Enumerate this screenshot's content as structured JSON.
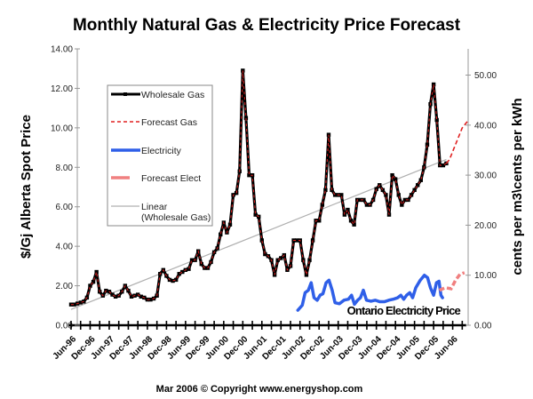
{
  "chart_data": {
    "type": "line",
    "title": "Monthly Natural Gas & Electricity Price Forecast",
    "ylabel_left": "$/Gj Alberta Spot Price",
    "ylabel_right": "cents per m3\\cents per kWh",
    "ylim_left": [
      0,
      14
    ],
    "ylim_right": [
      0,
      55
    ],
    "yticks_left": [
      "0.00",
      "2.00",
      "4.00",
      "6.00",
      "8.00",
      "10.00",
      "12.00",
      "14.00"
    ],
    "yticks_right": [
      "0.00",
      "10.00",
      "20.00",
      "30.00",
      "40.00",
      "50.00"
    ],
    "x_start_month": "Jun-96",
    "x_unit": "months since Jun-96",
    "xticks": [
      "Jun-96",
      "Dec-96",
      "Jun-97",
      "Dec-97",
      "Jun-98",
      "Dec-98",
      "Jun-99",
      "Dec-99",
      "Jun-00",
      "Dec-00",
      "Jun-01",
      "Dec-01",
      "Jun-02",
      "Dec-02",
      "Jun-03",
      "Dec-03",
      "Jun-04",
      "Dec-04",
      "Jun-05",
      "Dec-05",
      "Jun-06"
    ],
    "grid": false,
    "legend_position": "top-left",
    "legend": [
      "Wholesale Gas",
      "Forecast Gas",
      "Electricity",
      "Forecast Elect",
      "Linear\n(Wholesale Gas)"
    ],
    "legend_linear_line1": "Linear",
    "legend_linear_line2": "(Wholesale Gas)",
    "annotation": "Ontario Electricity Price",
    "series": [
      {
        "name": "Wholesale Gas",
        "axis": "left",
        "color": "#000000",
        "values": [
          1.05,
          1.05,
          1.1,
          1.15,
          1.2,
          1.4,
          2.0,
          2.2,
          2.7,
          1.7,
          1.5,
          1.75,
          1.7,
          1.55,
          1.45,
          1.5,
          1.7,
          2.0,
          1.75,
          1.45,
          1.5,
          1.55,
          1.45,
          1.4,
          1.3,
          1.3,
          1.35,
          1.5,
          2.6,
          2.8,
          2.5,
          2.3,
          2.25,
          2.3,
          2.6,
          2.7,
          2.8,
          2.85,
          3.3,
          3.3,
          3.75,
          3.1,
          2.9,
          2.9,
          3.2,
          3.7,
          3.9,
          4.6,
          5.2,
          4.7,
          5.1,
          6.6,
          6.7,
          7.8,
          12.9,
          10.5,
          7.6,
          7.6,
          5.6,
          5.5,
          4.3,
          3.6,
          3.5,
          3.3,
          2.55,
          3.3,
          3.4,
          3.55,
          2.8,
          3.0,
          4.3,
          4.3,
          4.3,
          3.3,
          2.55,
          3.3,
          4.3,
          5.3,
          5.3,
          6.1,
          6.85,
          9.65,
          6.85,
          6.6,
          6.6,
          6.6,
          5.6,
          5.85,
          5.3,
          5.1,
          6.35,
          6.35,
          6.35,
          6.1,
          6.1,
          6.35,
          6.9,
          7.1,
          6.85,
          6.6,
          5.6,
          7.6,
          7.4,
          6.6,
          6.1,
          6.35,
          6.35,
          6.6,
          6.85,
          7.1,
          7.35,
          8.0,
          9.15,
          11.2,
          12.2,
          10.4,
          8.1,
          8.1,
          8.2
        ]
      },
      {
        "name": "Forecast Gas",
        "axis": "left",
        "color": "#e02020",
        "points": [
          [
            118,
            8.2
          ],
          [
            119,
            8.4
          ],
          [
            120,
            8.8
          ],
          [
            121,
            9.2
          ],
          [
            122,
            9.6
          ],
          [
            123,
            10.0
          ],
          [
            124,
            10.2
          ],
          [
            125,
            10.4
          ]
        ]
      },
      {
        "name": "Electricity",
        "axis": "right",
        "color": "#2f5fe8",
        "points": [
          [
            71.3,
            3
          ],
          [
            72.7,
            4
          ],
          [
            73.6,
            6.5
          ],
          [
            74.6,
            7
          ],
          [
            75.5,
            8.5
          ],
          [
            76.4,
            5.5
          ],
          [
            77.4,
            5
          ],
          [
            78.3,
            6
          ],
          [
            79.2,
            6.3
          ],
          [
            80.2,
            8.5
          ],
          [
            81.1,
            9
          ],
          [
            82.1,
            7
          ],
          [
            83.0,
            4.5
          ],
          [
            84.4,
            4.3
          ],
          [
            85.8,
            5
          ],
          [
            87.2,
            5.2
          ],
          [
            88.2,
            6
          ],
          [
            89.1,
            4.2
          ],
          [
            90.1,
            5
          ],
          [
            91.0,
            5.5
          ],
          [
            91.9,
            7
          ],
          [
            92.9,
            5
          ],
          [
            94.3,
            4.8
          ],
          [
            95.7,
            5
          ],
          [
            97.1,
            4.7
          ],
          [
            98.5,
            4.7
          ],
          [
            99.9,
            5
          ],
          [
            101.3,
            5.2
          ],
          [
            102.7,
            5.5
          ],
          [
            103.7,
            6
          ],
          [
            104.6,
            5.2
          ],
          [
            105.5,
            6
          ],
          [
            106.5,
            6.5
          ],
          [
            107.4,
            5.5
          ],
          [
            108.4,
            7.5
          ],
          [
            109.8,
            9
          ],
          [
            111.1,
            10
          ],
          [
            112.1,
            9.5
          ],
          [
            113.0,
            7.5
          ],
          [
            114.0,
            6
          ],
          [
            114.9,
            8.5
          ],
          [
            115.7,
            8.8
          ],
          [
            116.3,
            6
          ],
          [
            116.8,
            5.5
          ]
        ]
      },
      {
        "name": "Forecast Elect",
        "axis": "right",
        "color": "#f08080",
        "points": [
          [
            115.8,
            7
          ],
          [
            117.7,
            7.5
          ],
          [
            119.5,
            7.3
          ],
          [
            120.9,
            9
          ],
          [
            122.3,
            10.2
          ],
          [
            123.7,
            10.5
          ]
        ]
      },
      {
        "name": "Linear (Wholesale Gas)",
        "axis": "left",
        "color": "#b0b0b0",
        "type": "trend",
        "points": [
          [
            0,
            0.8
          ],
          [
            118,
            8.4
          ]
        ]
      }
    ]
  },
  "footer": "Mar 2006  ©  Copyright   www.energyshop.com"
}
